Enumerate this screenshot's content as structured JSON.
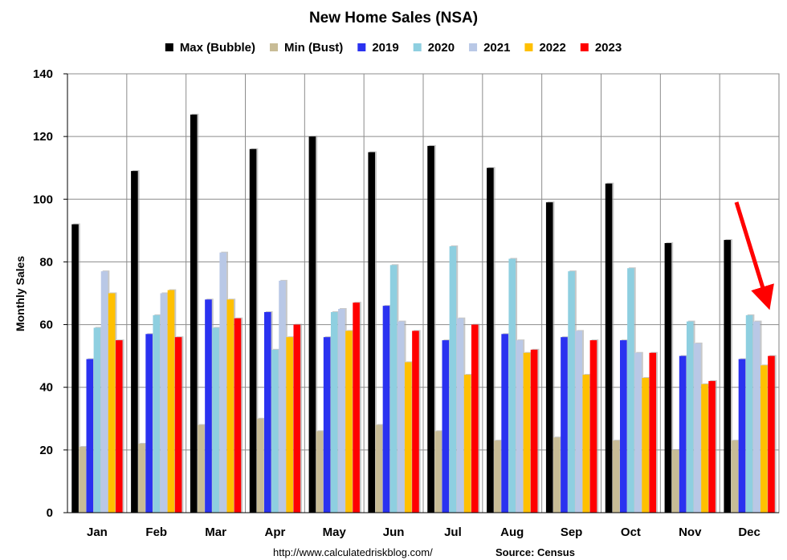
{
  "chart_data": {
    "type": "bar",
    "title": "New Home Sales (NSA)",
    "ylabel": "Monthly Sales",
    "xlabel": "",
    "ylim": [
      0,
      140
    ],
    "yticks": [
      0,
      20,
      40,
      60,
      80,
      100,
      120,
      140
    ],
    "grid": "horizontal and vertical",
    "legend_position": "top",
    "categories": [
      "Jan",
      "Feb",
      "Mar",
      "Apr",
      "May",
      "Jun",
      "Jul",
      "Aug",
      "Sep",
      "Oct",
      "Nov",
      "Dec"
    ],
    "series": [
      {
        "name": "Max (Bubble)",
        "color": "#000000",
        "values": [
          92,
          109,
          127,
          116,
          120,
          115,
          117,
          110,
          99,
          105,
          86,
          87
        ]
      },
      {
        "name": "Min (Bust)",
        "color": "#c8bc96",
        "values": [
          21,
          22,
          28,
          30,
          26,
          28,
          26,
          23,
          24,
          23,
          20,
          23
        ]
      },
      {
        "name": "2019",
        "color": "#2a32f0",
        "values": [
          49,
          57,
          68,
          64,
          56,
          66,
          55,
          57,
          56,
          55,
          50,
          49
        ]
      },
      {
        "name": "2020",
        "color": "#8ecfe0",
        "values": [
          59,
          63,
          59,
          52,
          64,
          79,
          85,
          81,
          77,
          78,
          61,
          63
        ]
      },
      {
        "name": "2021",
        "color": "#b9c8e6",
        "values": [
          77,
          70,
          83,
          74,
          65,
          61,
          62,
          55,
          58,
          51,
          54,
          61
        ]
      },
      {
        "name": "2022",
        "color": "#ffc000",
        "values": [
          70,
          71,
          68,
          56,
          58,
          48,
          44,
          51,
          44,
          43,
          41,
          47
        ]
      },
      {
        "name": "2023",
        "color": "#ff0000",
        "values": [
          55,
          56,
          62,
          60,
          67,
          58,
          60,
          52,
          55,
          51,
          42,
          50
        ]
      }
    ],
    "annotation": {
      "type": "arrow",
      "color": "#ff0000",
      "target": "Dec"
    }
  },
  "footer": {
    "url": "http://www.calculatedriskblog.com/",
    "source": "Source: Census"
  }
}
